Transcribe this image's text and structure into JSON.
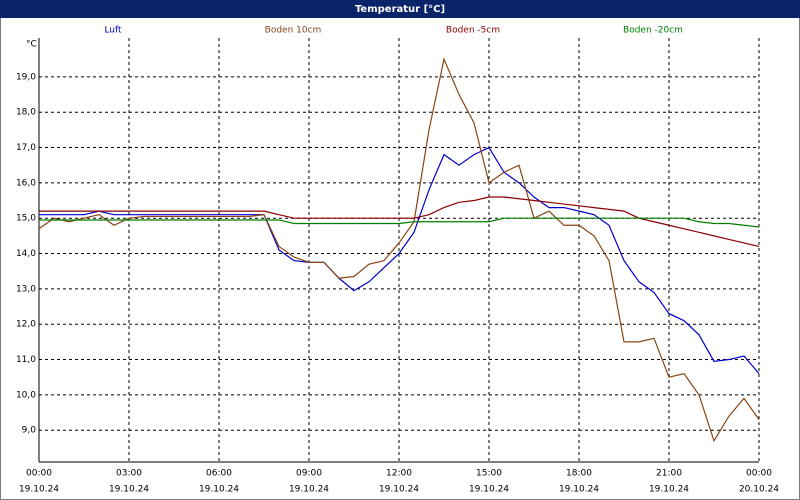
{
  "chart_data": {
    "type": "line",
    "title": "Temperatur [°C]",
    "y_unit": "°C",
    "x": [
      0,
      0.5,
      1,
      1.5,
      2,
      2.5,
      3,
      3.5,
      4,
      4.5,
      5,
      5.5,
      6,
      6.5,
      7,
      7.5,
      8,
      8.5,
      9,
      9.5,
      10,
      10.5,
      11,
      11.5,
      12,
      12.5,
      13,
      13.5,
      14,
      14.5,
      15,
      15.5,
      16,
      16.5,
      17,
      17.5,
      18,
      18.5,
      19,
      19.5,
      20,
      20.5,
      21,
      21.5,
      22,
      22.5,
      23,
      23.5,
      24
    ],
    "series": [
      {
        "name": "Luft",
        "color": "#0000cc",
        "values": [
          15.1,
          15.1,
          15.1,
          15.1,
          15.2,
          15.1,
          15.1,
          15.1,
          15.1,
          15.1,
          15.1,
          15.1,
          15.1,
          15.1,
          15.1,
          15.1,
          14.1,
          13.8,
          13.75,
          13.75,
          13.3,
          12.95,
          13.2,
          13.6,
          14.0,
          14.6,
          15.8,
          16.8,
          16.5,
          16.8,
          17.0,
          16.3,
          16.0,
          15.6,
          15.3,
          15.3,
          15.2,
          15.1,
          14.8,
          13.8,
          13.2,
          12.9,
          12.3,
          12.1,
          11.7,
          10.95,
          11.0,
          11.1,
          10.6
        ]
      },
      {
        "name": "Boden 10cm",
        "color": "#8b4513",
        "values": [
          14.7,
          15.0,
          14.9,
          15.0,
          15.1,
          14.8,
          15.0,
          15.05,
          15.05,
          15.05,
          15.05,
          15.05,
          15.05,
          15.05,
          15.05,
          15.1,
          14.2,
          13.9,
          13.75,
          13.75,
          13.3,
          13.35,
          13.7,
          13.8,
          14.3,
          14.9,
          17.5,
          19.5,
          18.5,
          17.7,
          16.0,
          16.3,
          16.5,
          15.0,
          15.2,
          14.8,
          14.8,
          14.5,
          13.8,
          11.5,
          11.5,
          11.6,
          10.5,
          10.6,
          10.0,
          8.7,
          9.4,
          9.9,
          9.3
        ]
      },
      {
        "name": "Boden -5cm",
        "color": "#8b0000",
        "values": [
          15.2,
          15.2,
          15.2,
          15.2,
          15.2,
          15.2,
          15.2,
          15.2,
          15.2,
          15.2,
          15.2,
          15.2,
          15.2,
          15.2,
          15.2,
          15.2,
          15.1,
          15.0,
          15.0,
          15.0,
          15.0,
          15.0,
          15.0,
          15.0,
          15.0,
          15.0,
          15.1,
          15.3,
          15.45,
          15.5,
          15.6,
          15.6,
          15.55,
          15.5,
          15.45,
          15.4,
          15.35,
          15.3,
          15.25,
          15.2,
          15.0,
          14.9,
          14.8,
          14.7,
          14.6,
          14.5,
          14.4,
          14.3,
          14.2
        ]
      },
      {
        "name": "Boden -20cm",
        "color": "#008000",
        "values": [
          14.95,
          14.95,
          14.95,
          14.95,
          14.95,
          14.95,
          14.95,
          14.95,
          14.95,
          14.95,
          14.95,
          14.95,
          14.95,
          14.95,
          14.95,
          14.95,
          14.95,
          14.85,
          14.85,
          14.85,
          14.85,
          14.85,
          14.85,
          14.85,
          14.85,
          14.9,
          14.9,
          14.9,
          14.9,
          14.9,
          14.9,
          15.0,
          15.0,
          15.0,
          15.0,
          15.0,
          15.0,
          15.0,
          15.0,
          15.0,
          15.0,
          15.0,
          15.0,
          15.0,
          14.9,
          14.85,
          14.85,
          14.8,
          14.75
        ]
      }
    ],
    "xlim": [
      0,
      24
    ],
    "ylim": [
      8.1,
      20.1
    ],
    "xticks": [
      {
        "value": 0,
        "label": "00:00",
        "date": "19.10.24"
      },
      {
        "value": 3,
        "label": "03:00",
        "date": "19.10.24"
      },
      {
        "value": 6,
        "label": "06:00",
        "date": "19.10.24"
      },
      {
        "value": 9,
        "label": "09:00",
        "date": "19.10.24"
      },
      {
        "value": 12,
        "label": "12:00",
        "date": "19.10.24"
      },
      {
        "value": 15,
        "label": "15:00",
        "date": "19.10.24"
      },
      {
        "value": 18,
        "label": "18:00",
        "date": "19.10.24"
      },
      {
        "value": 21,
        "label": "21:00",
        "date": "19.10.24"
      },
      {
        "value": 24,
        "label": "00:00",
        "date": "20.10.24"
      }
    ],
    "yticks": [
      {
        "value": 9,
        "label": "9,0"
      },
      {
        "value": 10,
        "label": "10,0"
      },
      {
        "value": 11,
        "label": "11,0"
      },
      {
        "value": 12,
        "label": "12,0"
      },
      {
        "value": 13,
        "label": "13,0"
      },
      {
        "value": 14,
        "label": "14,0"
      },
      {
        "value": 15,
        "label": "15,0"
      },
      {
        "value": 16,
        "label": "16,0"
      },
      {
        "value": 17,
        "label": "17,0"
      },
      {
        "value": 18,
        "label": "18,0"
      },
      {
        "value": 19,
        "label": "19,0"
      }
    ],
    "grid": true
  }
}
